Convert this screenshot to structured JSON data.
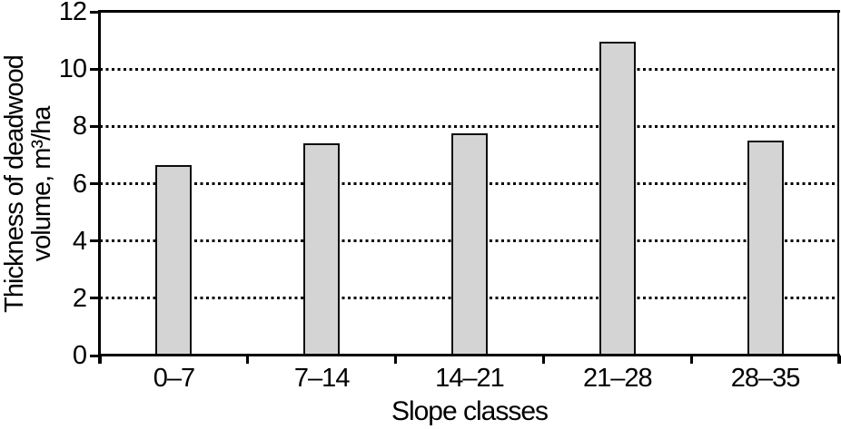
{
  "chart_data": {
    "type": "bar",
    "title": "",
    "xlabel": "Slope classes",
    "ylabel": "Thickness of deadwood volume, m³/ha",
    "ylabel_lines": [
      "Thickness of deadwood",
      "volume, m³/ha"
    ],
    "categories": [
      "0–7",
      "7–14",
      "14–21",
      "21–28",
      "28–35"
    ],
    "values": [
      6.65,
      7.4,
      7.75,
      10.95,
      7.5
    ],
    "ylim": [
      0,
      12
    ],
    "yticks": [
      0,
      2,
      4,
      6,
      8,
      10,
      12
    ],
    "gridline_values": [
      2,
      4,
      6,
      8,
      10
    ],
    "grid_style": "dotted-horizontal",
    "legend": "none",
    "bar_fill_color": "#d4d4d4",
    "bar_border_color": "#0d0d0d",
    "axis_color": "#000000",
    "text_color": "#000000",
    "background_color": "#ffffff"
  }
}
